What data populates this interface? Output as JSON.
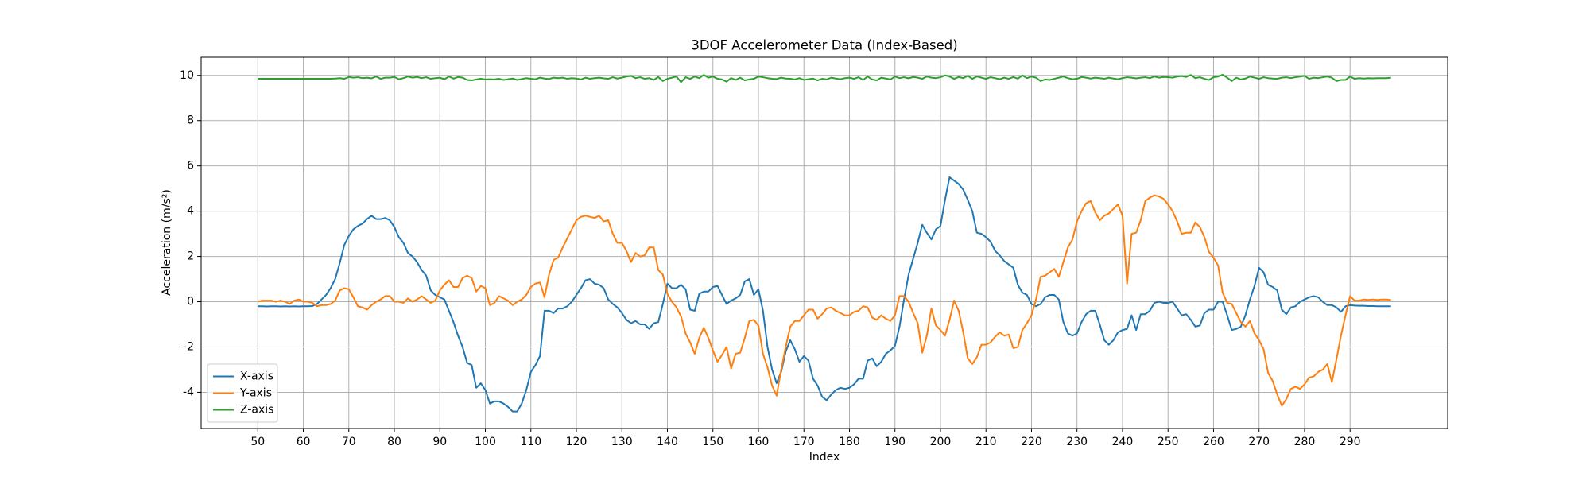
{
  "chart_data": {
    "type": "line",
    "title": "3DOF Accelerometer Data (Index-Based)",
    "x_label": "Index",
    "y_label": "Acceleration (m/s²)",
    "x": [
      50,
      51,
      52,
      53,
      54,
      55,
      56,
      57,
      58,
      59,
      60,
      61,
      62,
      63,
      64,
      65,
      66,
      67,
      68,
      69,
      70,
      71,
      72,
      73,
      74,
      75,
      76,
      77,
      78,
      79,
      80,
      81,
      82,
      83,
      84,
      85,
      86,
      87,
      88,
      89,
      90,
      91,
      92,
      93,
      94,
      95,
      96,
      97,
      98,
      99,
      100,
      101,
      102,
      103,
      104,
      105,
      106,
      107,
      108,
      109,
      110,
      111,
      112,
      113,
      114,
      115,
      116,
      117,
      118,
      119,
      120,
      121,
      122,
      123,
      124,
      125,
      126,
      127,
      128,
      129,
      130,
      131,
      132,
      133,
      134,
      135,
      136,
      137,
      138,
      139,
      140,
      141,
      142,
      143,
      144,
      145,
      146,
      147,
      148,
      149,
      150,
      151,
      152,
      153,
      154,
      155,
      156,
      157,
      158,
      159,
      160,
      161,
      162,
      163,
      164,
      165,
      166,
      167,
      168,
      169,
      170,
      171,
      172,
      173,
      174,
      175,
      176,
      177,
      178,
      179,
      180,
      181,
      182,
      183,
      184,
      185,
      186,
      187,
      188,
      189,
      190,
      191,
      192,
      193,
      194,
      195,
      196,
      197,
      198,
      199,
      200,
      201,
      202,
      203,
      204,
      205,
      206,
      207,
      208,
      209,
      210,
      211,
      212,
      213,
      214,
      215,
      216,
      217,
      218,
      219,
      220,
      221,
      222,
      223,
      224,
      225,
      226,
      227,
      228,
      229,
      230,
      231,
      232,
      233,
      234,
      235,
      236,
      237,
      238,
      239,
      240,
      241,
      242,
      243,
      244,
      245,
      246,
      247,
      248,
      249,
      250,
      251,
      252,
      253,
      254,
      255,
      256,
      257,
      258,
      259,
      260,
      261,
      262,
      263,
      264,
      265,
      266,
      267,
      268,
      269,
      270,
      271,
      272,
      273,
      274,
      275,
      276,
      277,
      278,
      279,
      280,
      281,
      282,
      283,
      284,
      285,
      286,
      287,
      288,
      289,
      290,
      291,
      292,
      293,
      294,
      295,
      296,
      297,
      298,
      299
    ],
    "series": [
      {
        "name": "X-axis",
        "color": "#1f77b4",
        "values": [
          -0.2,
          -0.2,
          -0.21,
          -0.2,
          -0.2,
          -0.21,
          -0.2,
          -0.21,
          -0.2,
          -0.21,
          -0.2,
          -0.2,
          -0.19,
          -0.1,
          0.1,
          0.3,
          0.6,
          1.0,
          1.7,
          2.5,
          2.9,
          3.2,
          3.35,
          3.45,
          3.65,
          3.8,
          3.65,
          3.65,
          3.7,
          3.6,
          3.3,
          2.85,
          2.6,
          2.15,
          2.0,
          1.75,
          1.4,
          1.15,
          0.5,
          0.3,
          0.2,
          0.1,
          -0.4,
          -0.9,
          -1.5,
          -2.0,
          -2.7,
          -2.8,
          -3.8,
          -3.6,
          -3.9,
          -4.5,
          -4.4,
          -4.4,
          -4.5,
          -4.65,
          -4.85,
          -4.85,
          -4.5,
          -3.9,
          -3.1,
          -2.8,
          -2.4,
          -0.4,
          -0.4,
          -0.5,
          -0.3,
          -0.3,
          -0.2,
          0.0,
          0.3,
          0.6,
          0.95,
          1.0,
          0.8,
          0.75,
          0.6,
          0.1,
          -0.1,
          -0.25,
          -0.5,
          -0.8,
          -0.95,
          -0.85,
          -1.0,
          -1.0,
          -1.2,
          -0.95,
          -0.9,
          -0.1,
          0.8,
          0.6,
          0.6,
          0.75,
          0.55,
          -0.35,
          -0.4,
          0.35,
          0.45,
          0.45,
          0.65,
          0.7,
          0.3,
          -0.1,
          0.05,
          0.15,
          0.3,
          0.9,
          1.0,
          0.3,
          0.55,
          -0.4,
          -2.0,
          -3.0,
          -3.6,
          -3.1,
          -2.2,
          -1.7,
          -2.1,
          -2.65,
          -2.4,
          -2.6,
          -3.4,
          -3.7,
          -4.2,
          -4.35,
          -4.1,
          -3.9,
          -3.8,
          -3.85,
          -3.8,
          -3.65,
          -3.4,
          -3.4,
          -2.6,
          -2.5,
          -2.85,
          -2.65,
          -2.3,
          -2.15,
          -1.95,
          -1.1,
          0.1,
          1.2,
          1.9,
          2.6,
          3.4,
          3.05,
          2.75,
          3.2,
          3.35,
          4.5,
          5.5,
          5.35,
          5.2,
          4.95,
          4.5,
          4.0,
          3.05,
          3.0,
          2.85,
          2.65,
          2.25,
          2.05,
          1.8,
          1.65,
          1.5,
          0.75,
          0.4,
          0.3,
          -0.1,
          -0.2,
          -0.1,
          0.2,
          0.3,
          0.3,
          0.1,
          -0.9,
          -1.4,
          -1.5,
          -1.4,
          -0.9,
          -0.55,
          -0.4,
          -0.4,
          -1.0,
          -1.7,
          -1.9,
          -1.7,
          -1.35,
          -1.25,
          -1.2,
          -0.6,
          -1.25,
          -0.55,
          -0.55,
          -0.4,
          -0.05,
          0.0,
          -0.05,
          -0.05,
          0.0,
          -0.3,
          -0.6,
          -0.55,
          -0.8,
          -1.1,
          -1.05,
          -0.5,
          -0.35,
          -0.35,
          0.0,
          0.0,
          -0.6,
          -1.25,
          -1.2,
          -1.1,
          -0.6,
          0.1,
          0.7,
          1.5,
          1.3,
          0.75,
          0.65,
          0.5,
          -0.35,
          -0.55,
          -0.25,
          -0.2,
          0.0,
          0.1,
          0.2,
          0.25,
          0.2,
          0.0,
          -0.15,
          -0.15,
          -0.25,
          -0.45,
          -0.2,
          -0.15,
          -0.17,
          -0.18,
          -0.18,
          -0.19,
          -0.19,
          -0.2,
          -0.2,
          -0.2,
          -0.2
        ]
      },
      {
        "name": "Y-axis",
        "color": "#ff7f0e",
        "values": [
          0.0,
          0.05,
          0.05,
          0.05,
          0.0,
          0.05,
          0.0,
          -0.1,
          0.05,
          0.1,
          0.0,
          0.0,
          -0.05,
          -0.2,
          -0.15,
          -0.15,
          -0.1,
          0.05,
          0.5,
          0.6,
          0.55,
          0.2,
          -0.2,
          -0.25,
          -0.35,
          -0.15,
          0.0,
          0.1,
          0.25,
          0.25,
          0.0,
          0.0,
          -0.05,
          0.15,
          0.0,
          0.1,
          0.25,
          0.1,
          -0.05,
          0.05,
          0.5,
          0.75,
          0.95,
          0.65,
          0.65,
          1.05,
          1.15,
          1.05,
          0.45,
          0.7,
          0.6,
          -0.15,
          -0.05,
          0.25,
          0.15,
          0.05,
          -0.15,
          0.0,
          0.1,
          0.3,
          0.65,
          0.8,
          0.85,
          0.2,
          1.2,
          1.85,
          1.95,
          2.4,
          2.8,
          3.2,
          3.6,
          3.75,
          3.8,
          3.75,
          3.7,
          3.8,
          3.55,
          3.6,
          3.0,
          2.6,
          2.6,
          2.25,
          1.75,
          2.15,
          2.0,
          2.05,
          2.4,
          2.4,
          1.4,
          1.2,
          0.35,
          0.0,
          -0.25,
          -0.65,
          -1.4,
          -1.8,
          -2.3,
          -1.6,
          -1.15,
          -1.6,
          -2.15,
          -2.65,
          -2.35,
          -2.0,
          -2.95,
          -2.3,
          -2.25,
          -1.6,
          -0.85,
          -0.8,
          -1.05,
          -2.3,
          -2.9,
          -3.7,
          -4.15,
          -3.0,
          -2.0,
          -1.1,
          -0.85,
          -0.85,
          -0.6,
          -0.35,
          -0.35,
          -0.75,
          -0.55,
          -0.3,
          -0.25,
          -0.4,
          -0.5,
          -0.6,
          -0.6,
          -0.45,
          -0.4,
          -0.2,
          -0.25,
          -0.7,
          -0.8,
          -0.6,
          -0.75,
          -0.85,
          -0.6,
          0.25,
          0.25,
          0.0,
          -0.5,
          -0.95,
          -2.25,
          -1.5,
          -0.3,
          -1.05,
          -1.25,
          -1.5,
          -0.8,
          0.05,
          -0.4,
          -1.35,
          -2.5,
          -2.75,
          -2.45,
          -1.9,
          -1.9,
          -1.8,
          -1.55,
          -1.35,
          -1.5,
          -1.45,
          -2.05,
          -2.0,
          -1.25,
          -0.95,
          -0.6,
          0.1,
          1.1,
          1.15,
          1.3,
          1.45,
          1.1,
          1.75,
          2.4,
          2.75,
          3.55,
          4.0,
          4.35,
          4.45,
          3.95,
          3.6,
          3.8,
          3.9,
          4.1,
          4.3,
          3.8,
          0.8,
          3.0,
          3.05,
          3.6,
          4.45,
          4.6,
          4.7,
          4.65,
          4.55,
          4.3,
          4.0,
          3.55,
          3.0,
          3.05,
          3.05,
          3.5,
          3.3,
          2.85,
          2.2,
          1.95,
          1.6,
          0.4,
          -0.05,
          -0.1,
          -0.5,
          -0.9,
          -1.1,
          -0.85,
          -1.4,
          -1.7,
          -2.1,
          -3.15,
          -3.5,
          -4.1,
          -4.6,
          -4.3,
          -3.85,
          -3.75,
          -3.85,
          -3.65,
          -3.35,
          -3.3,
          -3.1,
          -3.0,
          -2.75,
          -3.55,
          -2.55,
          -1.5,
          -0.6,
          0.25,
          0.05,
          0.05,
          0.1,
          0.08,
          0.1,
          0.08,
          0.1,
          0.1,
          0.08
        ]
      },
      {
        "name": "Z-axis",
        "color": "#2ca02c",
        "values": [
          9.85,
          9.85,
          9.85,
          9.85,
          9.85,
          9.85,
          9.85,
          9.85,
          9.85,
          9.85,
          9.85,
          9.85,
          9.85,
          9.85,
          9.85,
          9.85,
          9.85,
          9.86,
          9.88,
          9.85,
          9.93,
          9.9,
          9.92,
          9.88,
          9.9,
          9.87,
          9.95,
          9.85,
          9.9,
          9.9,
          9.93,
          9.83,
          9.88,
          9.95,
          9.9,
          9.93,
          9.88,
          9.92,
          9.85,
          9.88,
          9.9,
          9.83,
          9.95,
          9.86,
          9.93,
          9.9,
          9.8,
          9.78,
          9.82,
          9.85,
          9.82,
          9.83,
          9.82,
          9.85,
          9.8,
          9.83,
          9.86,
          9.8,
          9.84,
          9.88,
          9.85,
          9.83,
          9.9,
          9.86,
          9.84,
          9.9,
          9.88,
          9.9,
          9.85,
          9.88,
          9.86,
          9.82,
          9.9,
          9.85,
          9.88,
          9.9,
          9.87,
          9.85,
          9.92,
          9.86,
          9.9,
          9.95,
          9.98,
          9.88,
          9.92,
          9.85,
          9.88,
          9.8,
          9.93,
          9.75,
          9.85,
          9.9,
          9.95,
          9.7,
          9.92,
          9.85,
          9.95,
          9.88,
          10.02,
          9.9,
          9.95,
          9.85,
          9.82,
          9.72,
          9.88,
          9.8,
          9.9,
          9.78,
          9.82,
          9.85,
          9.95,
          9.92,
          9.88,
          9.85,
          9.84,
          9.9,
          9.86,
          9.85,
          9.82,
          9.88,
          9.8,
          9.83,
          9.86,
          9.78,
          9.85,
          9.82,
          9.9,
          9.86,
          9.83,
          9.88,
          9.9,
          9.85,
          9.92,
          9.8,
          9.95,
          9.82,
          9.78,
          9.9,
          9.86,
          9.82,
          9.95,
          9.88,
          9.92,
          9.87,
          9.93,
          9.9,
          9.85,
          9.95,
          9.9,
          9.88,
          9.92,
          10.0,
          9.95,
          9.85,
          9.93,
          9.88,
          9.98,
          9.85,
          9.95,
          9.9,
          9.85,
          9.92,
          9.88,
          9.83,
          9.9,
          9.85,
          9.93,
          9.86,
          10.0,
          9.88,
          9.95,
          9.9,
          9.75,
          9.82,
          9.8,
          9.85,
          9.9,
          9.95,
          9.88,
          9.83,
          9.85,
          9.93,
          9.9,
          9.86,
          9.9,
          9.88,
          9.85,
          9.9,
          9.86,
          9.83,
          9.88,
          9.92,
          9.9,
          9.87,
          9.9,
          9.92,
          9.88,
          9.95,
          9.9,
          9.93,
          9.92,
          9.9,
          9.95,
          9.97,
          9.93,
          10.02,
          9.88,
          9.92,
          9.85,
          9.8,
          9.92,
          9.95,
          10.03,
          9.9,
          9.75,
          9.9,
          9.82,
          9.86,
          9.95,
          9.9,
          9.85,
          9.92,
          9.88,
          9.86,
          9.85,
          9.9,
          9.92,
          9.88,
          9.92,
          9.95,
          9.98,
          9.85,
          9.9,
          9.88,
          9.92,
          9.95,
          9.9,
          9.75,
          9.8,
          9.8,
          9.95,
          9.85,
          9.88,
          9.86,
          9.88,
          9.87,
          9.88,
          9.88,
          9.88,
          9.9
        ]
      }
    ],
    "xlim": [
      37.55,
      311.45
    ],
    "ylim": [
      -5.6,
      10.8
    ],
    "xticks": [
      50,
      60,
      70,
      80,
      90,
      100,
      110,
      120,
      130,
      140,
      150,
      160,
      170,
      180,
      190,
      200,
      210,
      220,
      230,
      240,
      250,
      260,
      270,
      280,
      290
    ],
    "yticks": [
      -4,
      -2,
      0,
      2,
      4,
      6,
      8,
      10
    ],
    "grid": true,
    "legend": "lower left"
  }
}
